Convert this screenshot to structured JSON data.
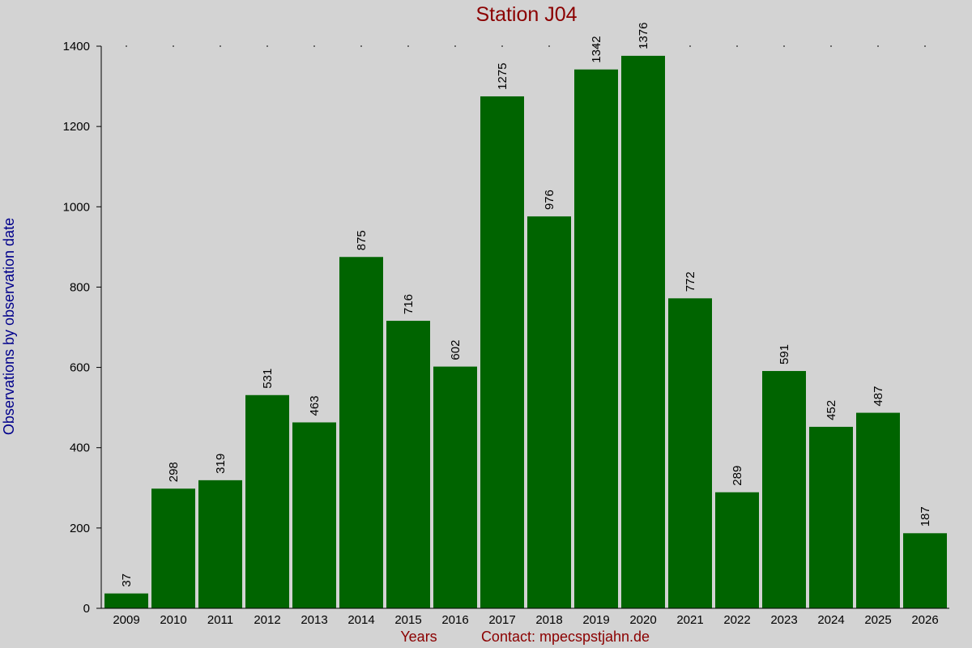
{
  "chart_data": {
    "type": "bar",
    "title": "Station J04",
    "xlabel": "Years",
    "ylabel": "Observations by observation date",
    "contact": "Contact: mpecspstjahn.de",
    "categories": [
      "2009",
      "2010",
      "2011",
      "2012",
      "2013",
      "2014",
      "2015",
      "2016",
      "2017",
      "2018",
      "2019",
      "2020",
      "2021",
      "2022",
      "2023",
      "2024",
      "2025",
      "2026"
    ],
    "values": [
      37,
      298,
      319,
      531,
      463,
      875,
      716,
      602,
      1275,
      976,
      1342,
      1376,
      772,
      289,
      591,
      452,
      487,
      187
    ],
    "ylim": [
      0,
      1400
    ],
    "yticks": [
      0,
      200,
      400,
      600,
      800,
      1000,
      1200,
      1400
    ],
    "grid": false,
    "bar_color": "#006400",
    "title_color": "#8b0000",
    "ylabel_color": "#00008b",
    "background_color": "#d3d3d3"
  }
}
